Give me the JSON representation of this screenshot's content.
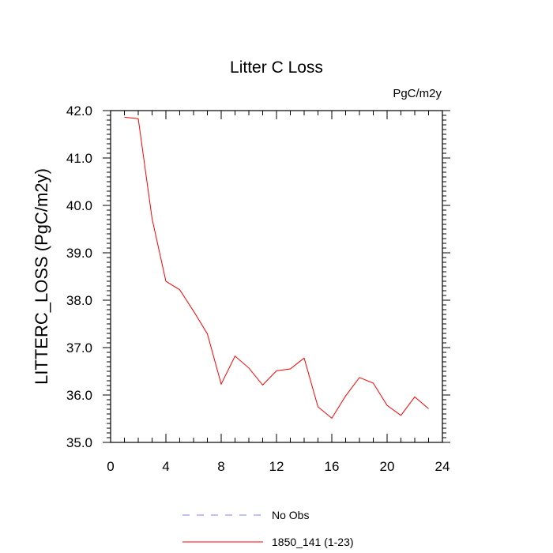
{
  "chart_data": {
    "type": "line",
    "title": "Litter C Loss",
    "units_label": "PgC/m2y",
    "ylabel": "LITTERC_LOSS  (PgC/m2y)",
    "xlabel": "",
    "xlim": [
      0,
      24
    ],
    "ylim": [
      35.0,
      42.0
    ],
    "x_ticks": [
      0,
      4,
      8,
      12,
      16,
      20,
      24
    ],
    "x_tick_labels": [
      "0",
      "4",
      "8",
      "12",
      "16",
      "20",
      "24"
    ],
    "y_ticks": [
      35.0,
      36.0,
      37.0,
      38.0,
      39.0,
      40.0,
      41.0,
      42.0
    ],
    "y_tick_labels": [
      "35.0",
      "36.0",
      "37.0",
      "38.0",
      "39.0",
      "40.0",
      "41.0",
      "42.0"
    ],
    "grid": false,
    "legend_position": "bottom",
    "series": [
      {
        "name": "No Obs",
        "color": "#8080ff",
        "dash": "dashed",
        "x": [],
        "y": []
      },
      {
        "name": "1850_141 (1-23)",
        "color": "#ff0000",
        "dash": "solid",
        "x": [
          1,
          2,
          3,
          4,
          5,
          6,
          7,
          8,
          9,
          10,
          11,
          12,
          13,
          14,
          15,
          16,
          17,
          18,
          19,
          20,
          21,
          22,
          23
        ],
        "y": [
          41.86,
          41.83,
          39.72,
          38.4,
          38.22,
          37.77,
          37.29,
          36.23,
          36.82,
          36.57,
          36.21,
          36.51,
          36.55,
          36.78,
          35.75,
          35.51,
          35.98,
          36.37,
          36.25,
          35.78,
          35.57,
          35.96,
          35.71
        ]
      }
    ]
  }
}
